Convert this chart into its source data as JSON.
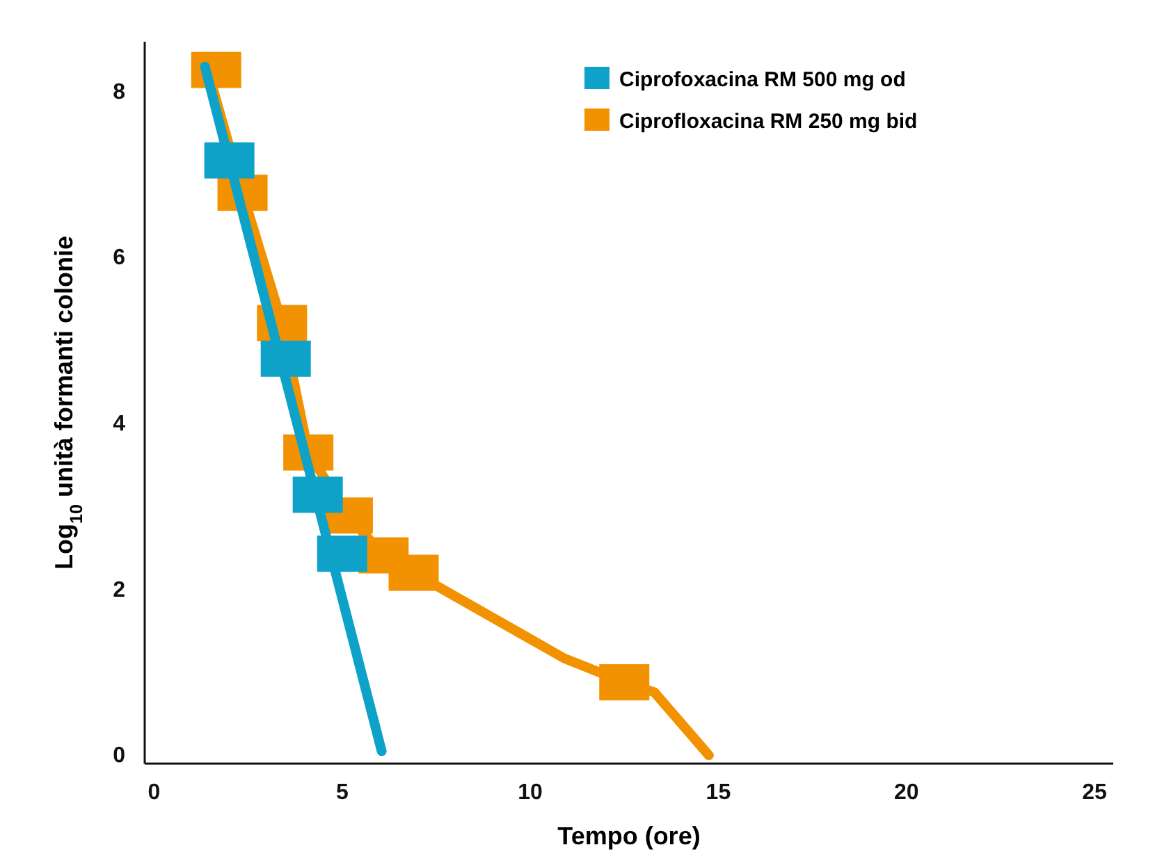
{
  "chart_data": {
    "type": "line",
    "xlabel": "Tempo (ore)",
    "ylabel": "Log$_{10}$ unità formanti colonie",
    "xlim": [
      -0.25,
      25.5
    ],
    "ylim": [
      -0.1,
      8.6
    ],
    "xticks": [
      0,
      5,
      10,
      15,
      20,
      25
    ],
    "yticks": [
      0,
      2,
      4,
      6,
      8
    ],
    "grid": false,
    "legend": "top right",
    "series": [
      {
        "type": "scatter",
        "name": "Ciprofoxacina RM 500 mg od",
        "color": "#0ea2c8",
        "marker": "square",
        "x": [
          2.0,
          3.5,
          4.35,
          5.0
        ],
        "values": [
          7.17,
          4.78,
          3.14,
          2.43
        ]
      },
      {
        "color": "#0ea2c8",
        "line_style": "solid",
        "x": [
          1.35,
          6.05
        ],
        "values": [
          8.3,
          0.05
        ]
      },
      {
        "type": "scatter",
        "name": "Ciprofloxacina RM 250 mg bid",
        "color": "#f39200",
        "marker": "square",
        "x": [
          1.65,
          2.35,
          3.4,
          4.1,
          5.15,
          6.1,
          6.9,
          12.5
        ],
        "values": [
          8.26,
          6.78,
          5.21,
          3.65,
          2.89,
          2.41,
          2.2,
          0.88
        ]
      },
      {
        "color": "#f39200",
        "line_style": "solid",
        "x": [
          1.4,
          2.35,
          3.4,
          4.1,
          5.15,
          6.1,
          6.9,
          10.9,
          12.5,
          13.3,
          14.75
        ],
        "values": [
          8.3,
          6.78,
          5.21,
          3.65,
          2.89,
          2.41,
          2.2,
          1.17,
          0.88,
          0.76,
          0
        ]
      }
    ]
  }
}
